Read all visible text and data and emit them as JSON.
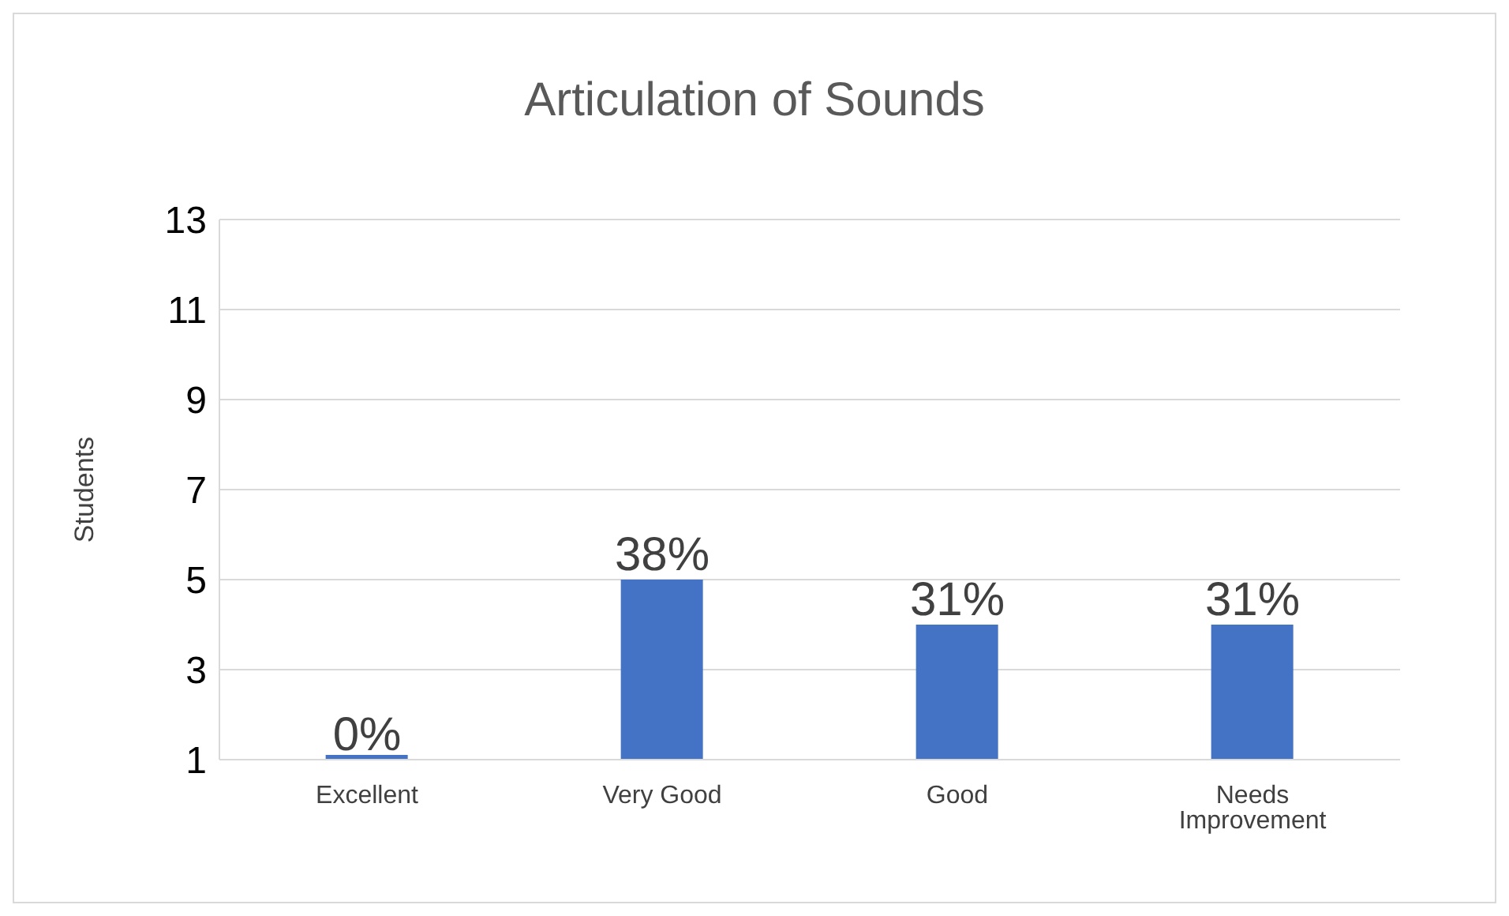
{
  "chart_data": {
    "type": "bar",
    "title": "Articulation of Sounds",
    "ylabel": "Students",
    "categories": [
      "Excellent",
      "Very Good",
      "Good",
      "Needs Improvement"
    ],
    "values": [
      1,
      5,
      4,
      4
    ],
    "annotations": [
      {
        "text": "0%",
        "x": "Excellent",
        "y": 1
      },
      {
        "text": "38%",
        "x": "Very Good",
        "y": 5
      },
      {
        "text": "31%",
        "x": "Good",
        "y": 4
      },
      {
        "text": "31%",
        "x": "Needs Improvement",
        "y": 4
      }
    ],
    "color": "#4472c4",
    "ylim": [
      1,
      13
    ],
    "yticks": [
      1,
      3,
      5,
      7,
      9,
      11,
      13
    ],
    "grid": "y",
    "legend": false
  }
}
